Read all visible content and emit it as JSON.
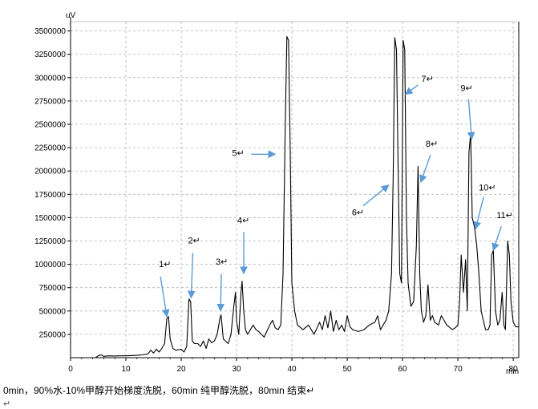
{
  "chart_data": {
    "type": "line",
    "title": "",
    "xlabel": "min",
    "ylabel": "uV",
    "xlim": [
      0,
      81
    ],
    "ylim": [
      0,
      3600000
    ],
    "xticks": [
      0,
      10,
      20,
      30,
      40,
      50,
      60,
      70,
      80
    ],
    "yticks": [
      250000,
      500000,
      750000,
      1000000,
      1250000,
      1500000,
      1750000,
      2000000,
      2250000,
      2500000,
      2750000,
      3000000,
      3250000,
      3500000
    ],
    "grid": true,
    "series": [
      {
        "x": [
          0,
          4.5,
          5,
          5.5,
          6,
          7,
          8,
          9,
          10,
          11,
          12,
          13,
          14,
          14.5,
          15,
          15.5,
          16,
          16.5,
          17,
          17.4,
          17.7,
          18,
          18.5,
          19,
          20,
          20.5,
          21,
          21.4,
          21.7,
          22,
          22.4,
          23,
          23.5,
          24,
          24.5,
          25,
          25.5,
          26,
          26.5,
          27,
          27.2,
          27.6,
          28,
          28.5,
          29,
          29.5,
          29.8,
          30,
          30.4,
          30.8,
          31,
          31.3,
          31.6,
          32,
          33,
          33.5,
          34,
          35,
          36,
          36.5,
          37,
          37.5,
          38,
          38.4,
          38.8,
          39.1,
          39.4,
          39.7,
          40,
          40.5,
          41,
          42,
          43,
          44,
          45,
          45.5,
          46,
          46.5,
          47,
          47.5,
          48,
          48.5,
          49,
          49.5,
          50,
          50.5,
          51,
          52,
          53,
          54,
          55,
          55.5,
          56,
          56.5,
          57,
          57.5,
          58,
          58.3,
          58.6,
          58.9,
          59.2,
          59.5,
          59.8,
          60.1,
          60.4,
          60.7,
          61,
          61.5,
          62,
          62.5,
          62.8,
          63.1,
          63.4,
          63.8,
          64.2,
          64.6,
          65,
          65.4,
          65.8,
          66.5,
          67,
          68,
          69,
          69.5,
          70,
          70.3,
          70.6,
          71,
          71.4,
          71.7,
          72,
          72.3,
          72.6,
          73,
          73.4,
          73.8,
          74.2,
          74.6,
          75,
          75.5,
          75.8,
          76.1,
          76.4,
          76.8,
          77.2,
          77.6,
          78,
          78.3,
          78.6,
          79,
          79.3,
          79.6,
          80,
          80.5,
          81
        ],
        "y": [
          0,
          0,
          20000,
          30000,
          15000,
          20000,
          18000,
          20000,
          20000,
          22000,
          25000,
          30000,
          40000,
          80000,
          50000,
          90000,
          60000,
          100000,
          150000,
          420000,
          440000,
          200000,
          100000,
          80000,
          90000,
          60000,
          120000,
          630000,
          600000,
          180000,
          150000,
          150000,
          120000,
          180000,
          100000,
          200000,
          160000,
          180000,
          250000,
          420000,
          460000,
          200000,
          180000,
          150000,
          250000,
          550000,
          700000,
          400000,
          250000,
          700000,
          820000,
          500000,
          300000,
          250000,
          350000,
          300000,
          280000,
          220000,
          350000,
          400000,
          320000,
          300000,
          350000,
          900000,
          2500000,
          3440000,
          3400000,
          2200000,
          800000,
          500000,
          350000,
          300000,
          350000,
          250000,
          380000,
          300000,
          450000,
          320000,
          500000,
          280000,
          400000,
          300000,
          350000,
          280000,
          450000,
          330000,
          300000,
          280000,
          300000,
          350000,
          380000,
          450000,
          300000,
          350000,
          400000,
          500000,
          900000,
          1900000,
          3430000,
          3300000,
          2000000,
          900000,
          800000,
          3400000,
          3300000,
          1500000,
          800000,
          550000,
          600000,
          1200000,
          2050000,
          900000,
          500000,
          380000,
          450000,
          780000,
          400000,
          450000,
          380000,
          350000,
          450000,
          350000,
          300000,
          320000,
          350000,
          600000,
          1100000,
          700000,
          1050000,
          500000,
          2200000,
          2400000,
          1500000,
          1400000,
          1200000,
          900000,
          500000,
          400000,
          300000,
          300000,
          350000,
          1100000,
          1150000,
          500000,
          350000,
          400000,
          700000,
          350000,
          300000,
          1250000,
          1100000,
          600000,
          380000,
          330000,
          330000
        ]
      }
    ],
    "annotations": [
      {
        "label": "1↵",
        "arrow_x": 17.4,
        "arrow_y": 440000
      },
      {
        "label": "2↵",
        "arrow_x": 21.8,
        "arrow_y": 640000
      },
      {
        "label": "3↵",
        "arrow_x": 27.1,
        "arrow_y": 500000
      },
      {
        "label": "4↵",
        "arrow_x": 31.3,
        "arrow_y": 900000
      },
      {
        "label": "5↵",
        "arrow_x": 37.0,
        "arrow_y": 2180000
      },
      {
        "label": "6↵",
        "arrow_x": 57.5,
        "arrow_y": 1850000
      },
      {
        "label": "7↵",
        "arrow_x": 60.5,
        "arrow_y": 2820000
      },
      {
        "label": "8↵",
        "arrow_x": 63.3,
        "arrow_y": 1880000
      },
      {
        "label": "9↵",
        "arrow_x": 72.5,
        "arrow_y": 2340000
      },
      {
        "label": "10↵",
        "arrow_x": 73.2,
        "arrow_y": 1380000
      },
      {
        "label": "11↵",
        "arrow_x": 76.4,
        "arrow_y": 1150000
      }
    ]
  },
  "caption": "0min，90%水-10%甲醇开始梯度洗脱，60min 纯甲醇洗脱，80min 结束↵",
  "paragraph_mark": "↵",
  "colors": {
    "trace": "#000000",
    "arrow": "#5b9bd5",
    "grid": "#b4b4b4"
  }
}
